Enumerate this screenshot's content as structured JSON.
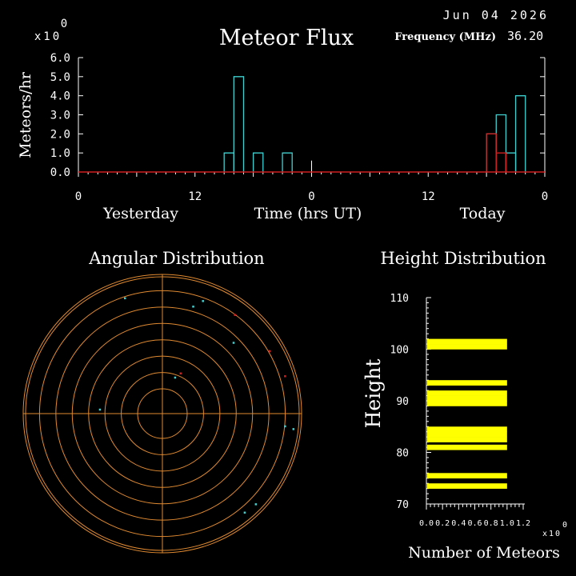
{
  "header": {
    "date": "Jun 04 2026",
    "title": "Meteor Flux",
    "frequency_label": "Frequency (MHz)",
    "frequency_value": "36.20",
    "exp_base": "x10",
    "exp_value": "0"
  },
  "colors": {
    "background": "#000000",
    "axis": "#ffffff",
    "today_series": "#40d0d0",
    "yesterday_series": "#d02020",
    "rings": "#e08a30",
    "height_bars": "#ffff00"
  },
  "chart_data": [
    {
      "type": "bar",
      "title": "Meteor Flux",
      "ylabel": "Meteors/hr",
      "xlabel": "Time (hrs UT)",
      "ylim": [
        0,
        6
      ],
      "y_ticks": [
        "0.0",
        "1.0",
        "2.0",
        "3.0",
        "4.0",
        "5.0",
        "6.0"
      ],
      "x_ticks": [
        "0",
        "12",
        "0",
        "12",
        "0"
      ],
      "x_day_labels": [
        "Yesterday",
        "Today"
      ],
      "x_hours": 48,
      "series": [
        {
          "color": "#40d0d0",
          "bins": [
            {
              "hour": 15,
              "value": 1
            },
            {
              "hour": 16,
              "value": 5
            },
            {
              "hour": 18,
              "value": 1
            },
            {
              "hour": 21,
              "value": 1
            },
            {
              "hour": 42,
              "value": 2
            },
            {
              "hour": 43,
              "value": 3
            },
            {
              "hour": 44,
              "value": 1
            },
            {
              "hour": 45,
              "value": 4
            }
          ]
        },
        {
          "color": "#d02020",
          "bins": [
            {
              "hour": 42,
              "value": 2
            },
            {
              "hour": 43,
              "value": 1
            }
          ]
        }
      ]
    },
    {
      "type": "scatter",
      "title": "Angular Distribution",
      "rings": 8,
      "points": [
        {
          "dx": -0.27,
          "dy": -0.83,
          "c": "#40d0d0"
        },
        {
          "dx": 0.29,
          "dy": -0.81,
          "c": "#40d0d0"
        },
        {
          "dx": 0.22,
          "dy": -0.77,
          "c": "#40d0d0"
        },
        {
          "dx": 0.52,
          "dy": -0.71,
          "c": "#d02020"
        },
        {
          "dx": 0.51,
          "dy": -0.51,
          "c": "#40d0d0"
        },
        {
          "dx": 0.77,
          "dy": -0.45,
          "c": "#d02020"
        },
        {
          "dx": 0.13,
          "dy": -0.29,
          "c": "#d02020"
        },
        {
          "dx": 0.09,
          "dy": -0.26,
          "c": "#40d0d0"
        },
        {
          "dx": 0.88,
          "dy": -0.27,
          "c": "#d02020"
        },
        {
          "dx": -0.45,
          "dy": -0.03,
          "c": "#40d0d0"
        },
        {
          "dx": 0.88,
          "dy": 0.09,
          "c": "#40d0d0"
        },
        {
          "dx": 0.94,
          "dy": 0.11,
          "c": "#40d0d0"
        },
        {
          "dx": 0.67,
          "dy": 0.65,
          "c": "#40d0d0"
        },
        {
          "dx": 0.59,
          "dy": 0.71,
          "c": "#40d0d0"
        }
      ]
    },
    {
      "type": "bar",
      "title": "Height Distribution",
      "ylabel": "Height",
      "xlabel": "Number of Meteors",
      "ylim": [
        70,
        110
      ],
      "xlim": [
        0,
        1.2
      ],
      "y_ticks": [
        "70",
        "80",
        "90",
        "100",
        "110"
      ],
      "x_ticks": [
        "0.0",
        "0.2",
        "0.4",
        "0.6",
        "0.8",
        "1.0",
        "1.2"
      ],
      "x_exp_base": "x10",
      "x_exp_value": "0",
      "bars": [
        {
          "height": 73.5,
          "value": 1
        },
        {
          "height": 75.5,
          "value": 1
        },
        {
          "height": 81,
          "value": 1
        },
        {
          "height": 82.5,
          "value": 1
        },
        {
          "height": 83.5,
          "value": 1
        },
        {
          "height": 84.5,
          "value": 1
        },
        {
          "height": 89.5,
          "value": 1
        },
        {
          "height": 90.5,
          "value": 1
        },
        {
          "height": 91.5,
          "value": 1
        },
        {
          "height": 93.5,
          "value": 1
        },
        {
          "height": 100.5,
          "value": 1
        },
        {
          "height": 101.5,
          "value": 1
        }
      ]
    }
  ]
}
